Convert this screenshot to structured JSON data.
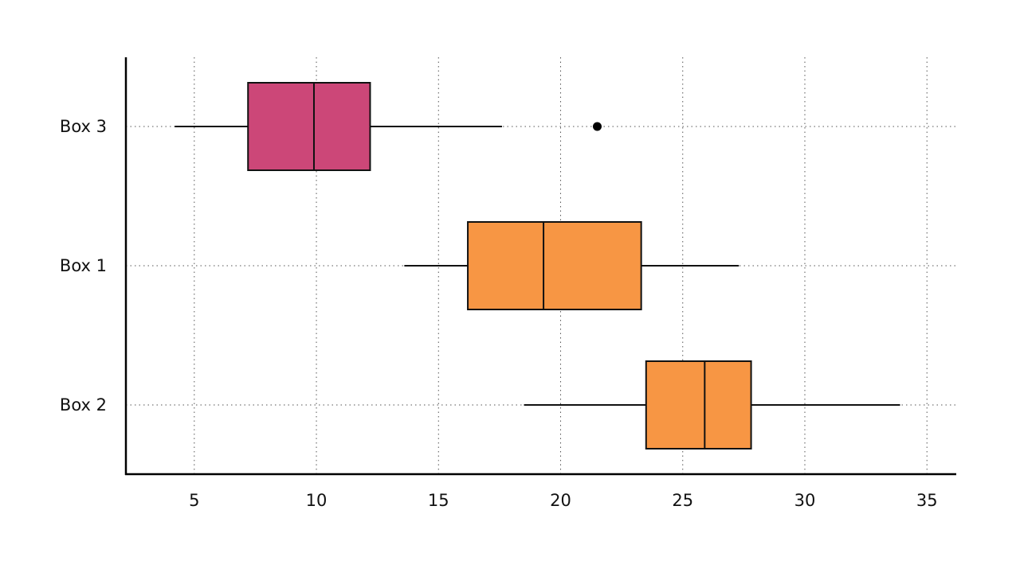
{
  "chart_data": {
    "type": "boxplot",
    "orientation": "horizontal",
    "title": "",
    "xlabel": "",
    "ylabel": "",
    "xlim": [
      2.2,
      36.2
    ],
    "x_ticks": [
      5,
      10,
      15,
      20,
      25,
      30,
      35
    ],
    "grid": true,
    "legend": "none",
    "categories": [
      "Box 3",
      "Box 1",
      "Box 2"
    ],
    "boxes": [
      {
        "label": "Box 3",
        "color": "#cc4778",
        "whisker_low": 4.2,
        "q1": 7.2,
        "median": 9.9,
        "q3": 12.2,
        "whisker_high": 17.6,
        "outliers": [
          21.5
        ]
      },
      {
        "label": "Box 1",
        "color": "#f79644",
        "whisker_low": 13.6,
        "q1": 16.2,
        "median": 19.3,
        "q3": 23.3,
        "whisker_high": 27.3,
        "outliers": []
      },
      {
        "label": "Box 2",
        "color": "#f79644",
        "whisker_low": 18.5,
        "q1": 23.5,
        "median": 25.9,
        "q3": 27.8,
        "whisker_high": 33.9,
        "outliers": []
      }
    ]
  }
}
